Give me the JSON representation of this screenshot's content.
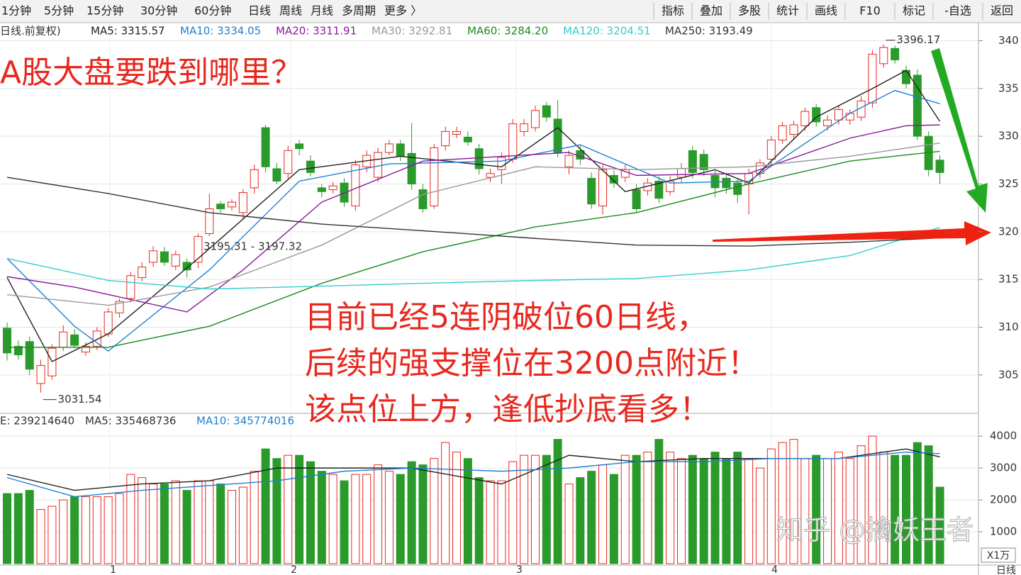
{
  "chart_data": {
    "type": "candlestick",
    "toolbar": {
      "left": [
        "1分钟",
        "5分钟",
        "15分钟",
        "30分钟",
        "60分钟",
        "日线",
        "周线",
        "月线",
        "多周期",
        "更多 〉"
      ],
      "active": 5,
      "right": [
        "指标",
        "叠加",
        "多股",
        "统计",
        "画线",
        "F10",
        "标记",
        "-自选",
        "返回"
      ]
    },
    "title": "A股大盘要跌到哪里？",
    "annotation_lines": [
      "目前已经5连阴破位60日线，",
      "后续的强支撑位在3200点附近！",
      "该点位上方，逢低抄底看多！"
    ],
    "watermark": "知乎 @擒妖王者",
    "legend_prefix": "日线.前复权)",
    "ma_series": [
      {
        "name": "MA5: 3315.57",
        "color": "#222222",
        "x": [
          0,
          4,
          9,
          17,
          26,
          35,
          44,
          49,
          55,
          63,
          66,
          72,
          77,
          80,
          83
        ],
        "values": [
          3152,
          3064,
          3093,
          3172,
          3265,
          3279,
          3268,
          3309,
          3242,
          3265,
          3251,
          3320,
          3350,
          3369,
          3315.57
        ]
      },
      {
        "name": "MA10: 3334.05",
        "color": "#1e7fd0",
        "x": [
          0,
          6,
          9,
          18,
          26,
          34,
          44,
          51,
          59,
          66,
          75,
          79,
          83
        ],
        "values": [
          3172,
          3101,
          3075,
          3160,
          3253,
          3271,
          3274,
          3291,
          3251,
          3253,
          3324,
          3348,
          3334.05
        ]
      },
      {
        "name": "MA20: 3311.91",
        "color": "#8a1b9a",
        "x": [
          0,
          6,
          16,
          21,
          28,
          37,
          50,
          56,
          66,
          75,
          80,
          83
        ],
        "values": [
          3153,
          3142,
          3116,
          3160,
          3231,
          3274,
          3283,
          3259,
          3261,
          3298,
          3311,
          3311.91
        ]
      },
      {
        "name": "MA30: 3292.81",
        "color": "#999999",
        "x": [
          0,
          9,
          18,
          28,
          37,
          47,
          56,
          66,
          75,
          83
        ],
        "values": [
          3134,
          3123,
          3142,
          3186,
          3239,
          3268,
          3265,
          3268,
          3279,
          3292.81
        ]
      },
      {
        "name": "MA60: 3284.20",
        "color": "#1a8a1a",
        "x": [
          0,
          9,
          18,
          28,
          37,
          47,
          56,
          66,
          75,
          83
        ],
        "values": [
          3079,
          3079,
          3101,
          3146,
          3179,
          3205,
          3220,
          3250,
          3274,
          3284.2
        ]
      },
      {
        "name": "MA120: 3204.51",
        "color": "#33cccc",
        "x": [
          0,
          9,
          18,
          28,
          37,
          47,
          56,
          66,
          75,
          83
        ],
        "values": [
          3172,
          3149,
          3140,
          3143,
          3146,
          3149,
          3151,
          3160,
          3175,
          3204.51
        ]
      },
      {
        "name": "MA250: 3193.49",
        "color": "#333333",
        "x": [
          0,
          9,
          18,
          28,
          37,
          47,
          56,
          66,
          75,
          83
        ],
        "values": [
          3257,
          3240,
          3220,
          3208,
          3201,
          3193,
          3186,
          3185,
          3189,
          3193.49
        ]
      }
    ],
    "ohlc": [
      [
        3099,
        3105,
        3065,
        3073
      ],
      [
        3080,
        3086,
        3066,
        3071
      ],
      [
        3085,
        3090,
        3050,
        3056
      ],
      [
        3041,
        3066,
        3031.54,
        3060
      ],
      [
        3049,
        3082,
        3045,
        3078
      ],
      [
        3079,
        3102,
        3075,
        3095
      ],
      [
        3092,
        3098,
        3078,
        3081
      ],
      [
        3074,
        3084,
        3070,
        3080
      ],
      [
        3080,
        3100,
        3076,
        3096
      ],
      [
        3093,
        3120,
        3090,
        3116
      ],
      [
        3115,
        3130,
        3110,
        3127
      ],
      [
        3130,
        3158,
        3126,
        3154
      ],
      [
        3152,
        3168,
        3148,
        3163
      ],
      [
        3168,
        3185,
        3163,
        3180
      ],
      [
        3179,
        3184,
        3164,
        3168
      ],
      [
        3164,
        3180,
        3160,
        3176
      ],
      [
        3168,
        3172,
        3152,
        3160
      ],
      [
        3168,
        3198,
        3162,
        3195
      ],
      [
        3198,
        3240,
        3195.31,
        3224
      ],
      [
        3229,
        3232,
        3220,
        3224
      ],
      [
        3226,
        3234,
        3222,
        3231
      ],
      [
        3220,
        3245,
        3214,
        3241
      ],
      [
        3246,
        3270,
        3240,
        3265
      ],
      [
        3309,
        3312,
        3262,
        3268
      ],
      [
        3266,
        3272,
        3250,
        3253
      ],
      [
        3261,
        3290,
        3255,
        3285
      ],
      [
        3292,
        3296,
        3280,
        3287
      ],
      [
        3274,
        3280,
        3258,
        3262
      ],
      [
        3246,
        3250,
        3236,
        3242
      ],
      [
        3244,
        3252,
        3240,
        3248
      ],
      [
        3251,
        3256,
        3226,
        3231
      ],
      [
        3227,
        3275,
        3222,
        3270
      ],
      [
        3268,
        3285,
        3262,
        3280
      ],
      [
        3257,
        3288,
        3252,
        3283
      ],
      [
        3283,
        3296,
        3280,
        3292
      ],
      [
        3292,
        3296,
        3274,
        3279
      ],
      [
        3282,
        3314,
        3244,
        3250
      ],
      [
        3244,
        3250,
        3220,
        3224
      ],
      [
        3227,
        3292,
        3224,
        3288
      ],
      [
        3290,
        3310,
        3285,
        3305
      ],
      [
        3302,
        3310,
        3298,
        3305
      ],
      [
        3299,
        3305,
        3290,
        3294
      ],
      [
        3287,
        3292,
        3260,
        3266
      ],
      [
        3257,
        3266,
        3252,
        3261
      ],
      [
        3265,
        3283,
        3250,
        3278
      ],
      [
        3276,
        3318,
        3272,
        3313
      ],
      [
        3305,
        3318,
        3300,
        3313
      ],
      [
        3309,
        3332,
        3305,
        3327
      ],
      [
        3332,
        3336,
        3315,
        3320
      ],
      [
        3318,
        3338,
        3278,
        3283
      ],
      [
        3268,
        3285,
        3260,
        3280
      ],
      [
        3285,
        3290,
        3270,
        3276
      ],
      [
        3256,
        3262,
        3224,
        3229
      ],
      [
        3227,
        3270,
        3218,
        3265
      ],
      [
        3259,
        3264,
        3246,
        3251
      ],
      [
        3257,
        3270,
        3252,
        3265
      ],
      [
        3244,
        3250,
        3220,
        3224
      ],
      [
        3243,
        3256,
        3238,
        3251
      ],
      [
        3253,
        3258,
        3230,
        3235
      ],
      [
        3242,
        3258,
        3238,
        3253
      ],
      [
        3257,
        3272,
        3252,
        3266
      ],
      [
        3285,
        3290,
        3256,
        3262
      ],
      [
        3281,
        3286,
        3258,
        3265
      ],
      [
        3259,
        3264,
        3236,
        3246
      ],
      [
        3256,
        3262,
        3240,
        3246
      ],
      [
        3251,
        3256,
        3230,
        3239
      ],
      [
        3250,
        3266,
        3218,
        3261
      ],
      [
        3261,
        3276,
        3256,
        3272
      ],
      [
        3276,
        3300,
        3270,
        3296
      ],
      [
        3296,
        3315,
        3292,
        3311
      ],
      [
        3302,
        3316,
        3298,
        3312
      ],
      [
        3311,
        3330,
        3306,
        3326
      ],
      [
        3330,
        3334,
        3310,
        3315
      ],
      [
        3311,
        3322,
        3306,
        3317
      ],
      [
        3317,
        3332,
        3312,
        3328
      ],
      [
        3317,
        3328,
        3312,
        3324
      ],
      [
        3320,
        3342,
        3316,
        3337
      ],
      [
        3335,
        3390,
        3330,
        3386
      ],
      [
        3376,
        3396.17,
        3372,
        3393
      ],
      [
        3392,
        3395,
        3376,
        3380
      ],
      [
        3369,
        3374,
        3350,
        3355
      ],
      [
        3364,
        3370,
        3296,
        3300
      ],
      [
        3300,
        3305,
        3258,
        3265
      ],
      [
        3275,
        3280,
        3250,
        3262
      ]
    ],
    "ylim": [
      3012,
      3413
    ],
    "yticks": [
      {
        "value": 3400,
        "label": "340"
      },
      {
        "value": 3350,
        "label": "335"
      },
      {
        "value": 3300,
        "label": "330"
      },
      {
        "value": 3250,
        "label": "325"
      },
      {
        "value": 3200,
        "label": "320"
      },
      {
        "value": 3150,
        "label": "315"
      },
      {
        "value": 3100,
        "label": "310"
      },
      {
        "value": 3050,
        "label": "305"
      }
    ],
    "price_marks": [
      {
        "value": 3396.17,
        "label": "3396.17"
      },
      {
        "value": 3031.54,
        "label": "3031.54"
      }
    ],
    "range_label": "3195.31 - 3197.32",
    "up_color": "#e8281e",
    "down_color": "#2a9a2a",
    "volume": {
      "header": [
        "E: 239214640",
        "MA5: 335468736",
        "MA10: 345774016"
      ],
      "values": [
        2200,
        2200,
        2300,
        1700,
        1800,
        2000,
        2100,
        2100,
        2100,
        2100,
        2200,
        2800,
        2700,
        2500,
        2500,
        2600,
        2300,
        2600,
        2600,
        2500,
        2300,
        2400,
        2900,
        3600,
        3300,
        3400,
        3400,
        3200,
        2900,
        2800,
        2600,
        2800,
        2800,
        3100,
        2900,
        2800,
        3200,
        3100,
        3300,
        3800,
        3500,
        3300,
        2700,
        2600,
        2600,
        3200,
        3400,
        3400,
        3400,
        3900,
        2500,
        2700,
        2900,
        3100,
        2800,
        3400,
        3400,
        3500,
        3900,
        3500,
        3300,
        3400,
        3300,
        3500,
        3300,
        3500,
        3300,
        3000,
        3600,
        3800,
        3900,
        3300,
        3400,
        3300,
        3500,
        3300,
        3700,
        4000,
        3500,
        3400,
        3400,
        3800,
        3700,
        2400
      ],
      "ma": [
        {
          "color": "#222222",
          "x": [
            0,
            6,
            12,
            18,
            24,
            30,
            36,
            44,
            50,
            56,
            62,
            68,
            74,
            80,
            83
          ],
          "values": [
            2800,
            2300,
            2500,
            2600,
            3000,
            3000,
            3000,
            2500,
            3400,
            3200,
            3300,
            3300,
            3300,
            3600,
            3350
          ]
        },
        {
          "color": "#1e7fd0",
          "x": [
            0,
            6,
            12,
            18,
            24,
            30,
            36,
            44,
            50,
            56,
            62,
            68,
            74,
            80,
            83
          ],
          "values": [
            2700,
            2100,
            2300,
            2450,
            2600,
            2900,
            3000,
            2900,
            3000,
            3200,
            3200,
            3300,
            3300,
            3500,
            3450
          ]
        }
      ],
      "ylim": [
        0,
        4560
      ],
      "yticks": [
        4000,
        3000,
        2000,
        1000
      ],
      "unit": "X1万"
    },
    "month_labels": [
      "1",
      "2",
      "3",
      "4"
    ],
    "period_label": "日线"
  }
}
